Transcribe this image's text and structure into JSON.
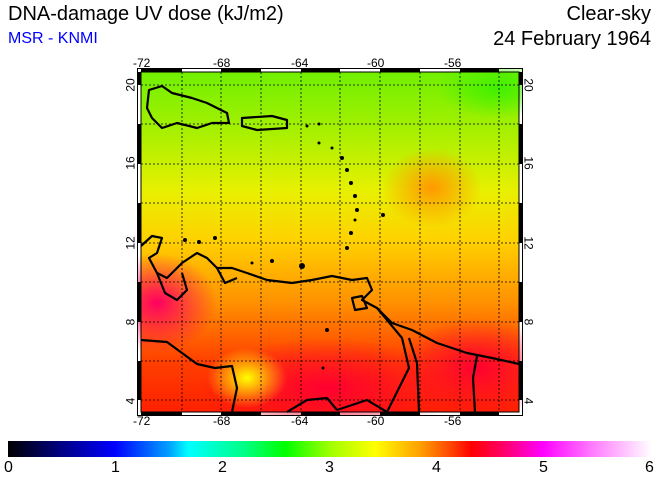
{
  "header": {
    "title": "DNA-damage UV dose (kJ/m2)",
    "source": "MSR - KNMI",
    "mode": "Clear-sky",
    "date": "24 February 1964"
  },
  "map": {
    "lon_ticks": [
      "-72",
      "-68",
      "-64",
      "-60",
      "-56"
    ],
    "lat_ticks": [
      "20",
      "16",
      "12",
      "8",
      "4"
    ],
    "lon_range": [
      -72,
      -53
    ],
    "lat_range": [
      3.4,
      20.7
    ]
  },
  "colorbar": {
    "ticks": [
      "0",
      "1",
      "2",
      "3",
      "4",
      "5",
      "6"
    ],
    "min": 0,
    "max": 6,
    "units": "kJ/m2"
  }
}
